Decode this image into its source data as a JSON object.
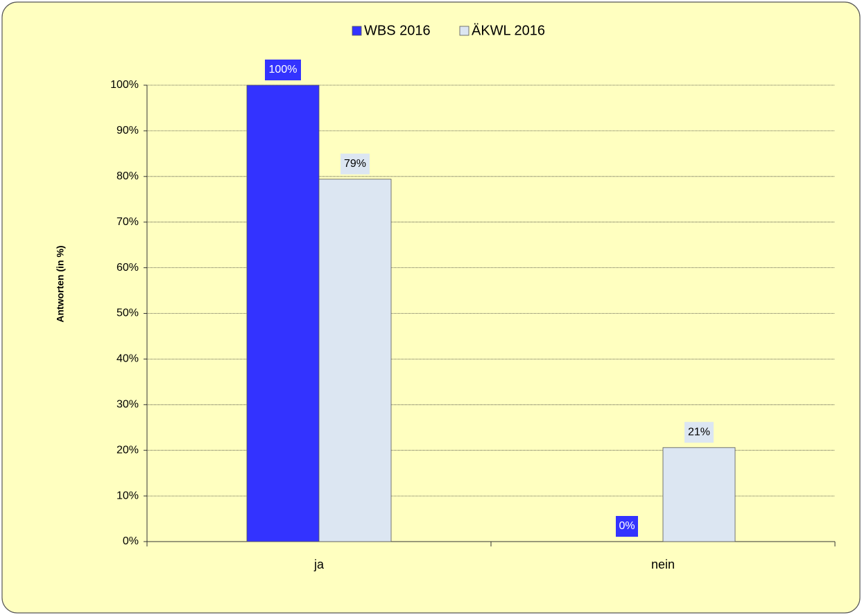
{
  "chart_data": {
    "type": "bar",
    "categories": [
      "ja",
      "nein"
    ],
    "series": [
      {
        "name": "WBS 2016",
        "color": "#3333ff",
        "values": [
          100,
          0
        ],
        "value_labels": [
          "100%",
          "0%"
        ]
      },
      {
        "name": "ÄKWL 2016",
        "color": "#dce6f2",
        "values": [
          79.4,
          20.6
        ],
        "value_labels": [
          "79%",
          "21%"
        ]
      }
    ],
    "y_label": "Antworten (in %)",
    "ylim": [
      0,
      100
    ],
    "yticks": [
      {
        "value": 0,
        "label": "0%"
      },
      {
        "value": 10,
        "label": "10%"
      },
      {
        "value": 20,
        "label": "20%"
      },
      {
        "value": 30,
        "label": "30%"
      },
      {
        "value": 40,
        "label": "40%"
      },
      {
        "value": 50,
        "label": "50%"
      },
      {
        "value": 60,
        "label": "60%"
      },
      {
        "value": 70,
        "label": "70%"
      },
      {
        "value": 80,
        "label": "80%"
      },
      {
        "value": 90,
        "label": "90%"
      },
      {
        "value": 100,
        "label": "100%"
      }
    ],
    "grid": true,
    "legend": "top"
  }
}
